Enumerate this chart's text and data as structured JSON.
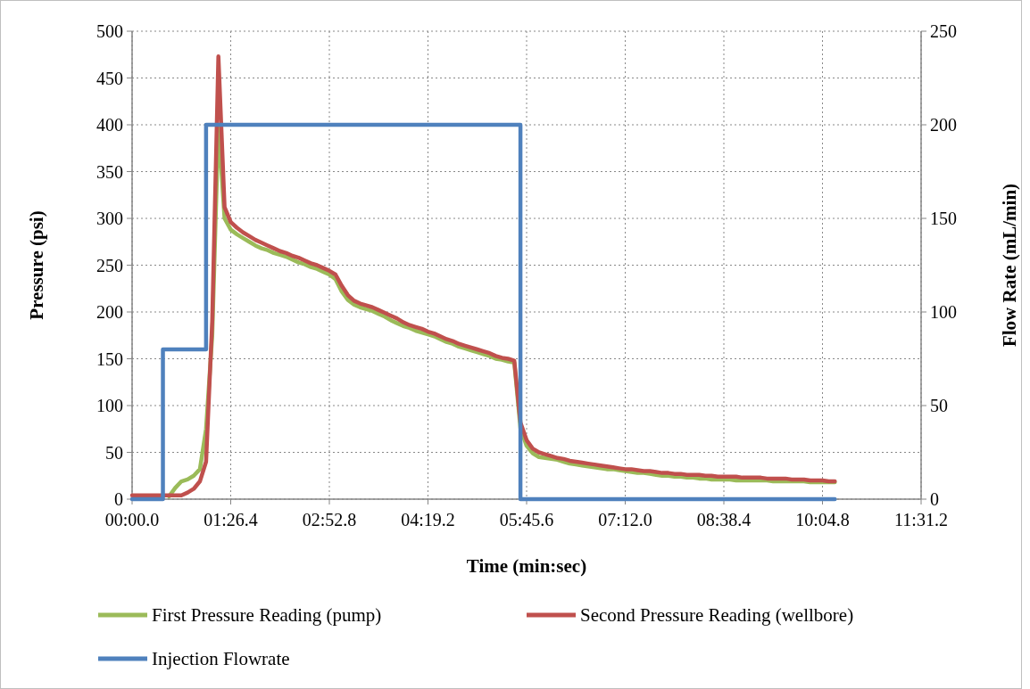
{
  "chart_data": {
    "type": "line",
    "xlabel": "Time (min:sec)",
    "ylabel": "Pressure (psi)",
    "y2label": "Flow Rate (mL/min)",
    "categories": [
      "00:00.0",
      null,
      null,
      null,
      null,
      null,
      null,
      null,
      null,
      null,
      null,
      null,
      null,
      null,
      null,
      null,
      "01:26.4",
      null,
      null,
      null,
      null,
      null,
      null,
      null,
      null,
      null,
      null,
      null,
      null,
      null,
      null,
      null,
      "02:52.8",
      null,
      null,
      null,
      null,
      null,
      null,
      null,
      null,
      null,
      null,
      null,
      null,
      null,
      null,
      null,
      "04:19.2",
      null,
      null,
      null,
      null,
      null,
      null,
      null,
      null,
      null,
      null,
      null,
      null,
      null,
      null,
      null,
      "05:45.6",
      null,
      null,
      null,
      null,
      null,
      null,
      null,
      null,
      null,
      null,
      null,
      null,
      null,
      null,
      null,
      "07:12.0",
      null,
      null,
      null,
      null,
      null,
      null,
      null,
      null,
      null,
      null,
      null,
      null,
      null,
      null,
      null,
      "08:38.4",
      null,
      null,
      null,
      null,
      null,
      null,
      null,
      null,
      null,
      null,
      null,
      null,
      null,
      null,
      null,
      "10:04.8",
      null,
      null,
      null,
      null,
      null,
      null,
      null,
      null,
      null,
      null,
      null,
      null,
      null,
      null,
      null,
      "11:31.2"
    ],
    "ylim": [
      0,
      500
    ],
    "yticks": [
      0,
      50,
      100,
      150,
      200,
      250,
      300,
      350,
      400,
      450,
      500
    ],
    "y2lim": [
      0,
      250
    ],
    "y2ticks": [
      0,
      50,
      100,
      150,
      200,
      250
    ],
    "grid": true,
    "legend": "bottom",
    "marker": "none",
    "line_style": "solid",
    "series": [
      {
        "name": "First Pressure Reading (pump)",
        "color": "#9bbb59",
        "values": [
          null,
          null,
          null,
          null,
          null,
          null,
          3,
          12,
          19,
          21,
          25,
          32,
          75,
          175,
          400,
          300,
          288,
          283,
          279,
          275,
          271,
          268,
          266,
          263,
          261,
          259,
          256,
          253,
          251,
          248,
          246,
          243,
          240,
          235,
          222,
          213,
          208,
          205,
          203,
          201,
          198,
          195,
          191,
          188,
          185,
          183,
          180,
          178,
          176,
          174,
          171,
          168,
          166,
          163,
          161,
          159,
          157,
          155,
          153,
          150,
          149,
          147,
          146,
          76,
          57,
          49,
          45,
          44,
          43,
          42,
          40,
          38,
          37,
          36,
          35,
          34,
          33,
          32,
          32,
          31,
          30,
          29,
          28,
          28,
          27,
          26,
          25,
          25,
          24,
          24,
          23,
          23,
          22,
          22,
          21,
          21,
          21,
          21,
          20,
          20,
          20,
          20,
          20,
          20,
          19,
          19,
          19,
          19,
          19,
          19,
          18,
          18,
          18,
          18,
          18,
          null,
          null,
          null,
          null,
          null,
          null,
          null,
          null,
          null,
          null,
          null,
          null,
          null,
          null
        ]
      },
      {
        "name": "Second Pressure Reading (wellbore)",
        "color": "#c0504d",
        "values": [
          4,
          4,
          4,
          4,
          4,
          4,
          4,
          4,
          4,
          7,
          11,
          19,
          40,
          190,
          473,
          312,
          296,
          290,
          285,
          281,
          277,
          274,
          271,
          268,
          265,
          263,
          260,
          258,
          255,
          252,
          250,
          247,
          244,
          240,
          228,
          218,
          212,
          209,
          207,
          205,
          202,
          199,
          196,
          193,
          189,
          186,
          184,
          182,
          179,
          177,
          174,
          171,
          169,
          166,
          164,
          162,
          160,
          158,
          156,
          153,
          151,
          150,
          148,
          82,
          63,
          54,
          50,
          48,
          46,
          44,
          43,
          41,
          40,
          39,
          38,
          37,
          36,
          35,
          34,
          33,
          32,
          32,
          31,
          30,
          30,
          29,
          28,
          28,
          27,
          27,
          26,
          26,
          26,
          25,
          25,
          24,
          24,
          24,
          24,
          23,
          23,
          23,
          23,
          22,
          22,
          22,
          22,
          21,
          21,
          21,
          20,
          20,
          20,
          19,
          19,
          null,
          null,
          null,
          null,
          null,
          null,
          null,
          null,
          null,
          null,
          null,
          null,
          null,
          null
        ]
      },
      {
        "name": "Injection Flowrate",
        "color": "#4f81bd",
        "type": "step",
        "axis": "y2",
        "values": [
          0,
          0,
          0,
          0,
          0,
          80,
          80,
          80,
          80,
          80,
          80,
          80,
          200,
          200,
          200,
          200,
          200,
          200,
          200,
          200,
          200,
          200,
          200,
          200,
          200,
          200,
          200,
          200,
          200,
          200,
          200,
          200,
          200,
          200,
          200,
          200,
          200,
          200,
          200,
          200,
          200,
          200,
          200,
          200,
          200,
          200,
          200,
          200,
          200,
          200,
          200,
          200,
          200,
          200,
          200,
          200,
          200,
          200,
          200,
          200,
          200,
          200,
          200,
          0,
          0,
          0,
          0,
          0,
          0,
          0,
          0,
          0,
          0,
          0,
          0,
          0,
          0,
          0,
          0,
          0,
          0,
          0,
          0,
          0,
          0,
          0,
          0,
          0,
          0,
          0,
          0,
          0,
          0,
          0,
          0,
          0,
          0,
          0,
          0,
          0,
          0,
          0,
          0,
          0,
          0,
          0,
          0,
          0,
          0,
          0,
          0,
          0,
          0,
          0,
          0,
          null,
          null,
          null,
          null,
          null,
          null,
          null,
          null,
          null,
          null,
          null,
          null,
          null,
          null
        ]
      }
    ]
  }
}
